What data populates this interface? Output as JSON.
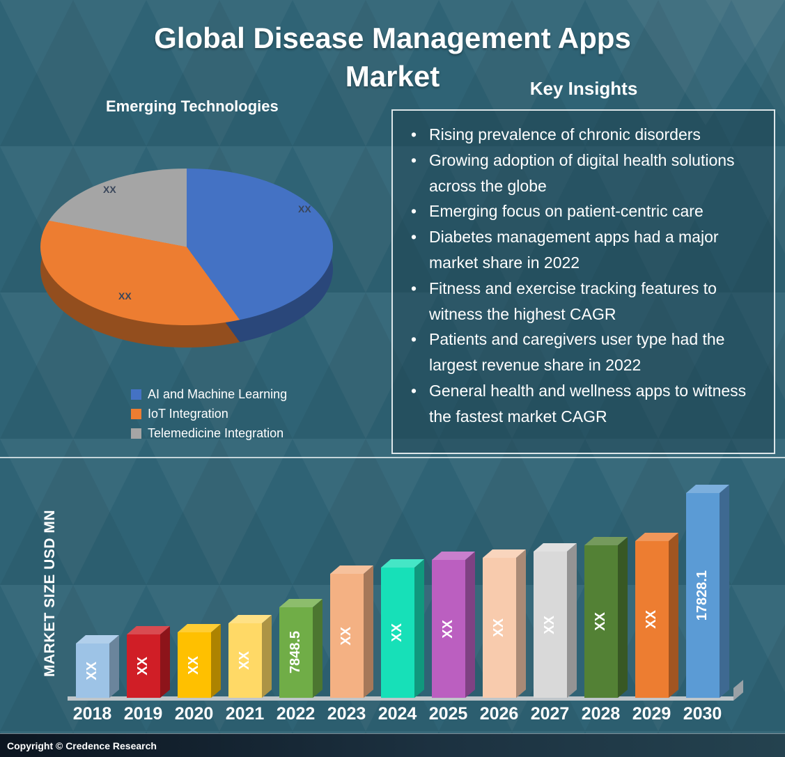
{
  "header": {
    "title_line1": "Global Disease Management Apps",
    "title_line2": "Market"
  },
  "pie_section": {
    "heading": "Emerging Technologies"
  },
  "insights": {
    "heading": "Key Insights",
    "bullets": [
      "Rising prevalence of chronic disorders",
      "Growing adoption of digital health solutions across the globe",
      "Emerging focus on patient-centric care",
      "Diabetes management apps had a major market share in 2022",
      "Fitness and exercise tracking features to witness the highest CAGR",
      "Patients and caregivers user type had the largest revenue share in 2022",
      "General health and wellness apps to witness the fastest market CAGR"
    ]
  },
  "footer": {
    "copyright": "Copyright © Credence Research"
  },
  "colors": {
    "background": "#2f6375",
    "box_border": "#dde6e9"
  },
  "chart_data": [
    {
      "type": "pie",
      "title": "Emerging Technologies",
      "legend_position": "bottom",
      "slices": [
        {
          "label": "AI and Machine Learning",
          "data_label": "XX",
          "percent_est": 40,
          "color": "#4472c4"
        },
        {
          "label": "IoT Integration",
          "data_label": "XX",
          "percent_est": 38,
          "color": "#ed7d31"
        },
        {
          "label": "Telemedicine Integration",
          "data_label": "XX",
          "percent_est": 22,
          "color": "#a5a5a5"
        }
      ]
    },
    {
      "type": "bar",
      "title": "",
      "xlabel": "",
      "ylabel": "MARKET SIZE USD MN",
      "categories": [
        "2018",
        "2019",
        "2020",
        "2021",
        "2022",
        "2023",
        "2024",
        "2025",
        "2026",
        "2027",
        "2028",
        "2029",
        "2030"
      ],
      "bar_labels": [
        "XX",
        "XX",
        "XX",
        "XX",
        "7848.5",
        "XX",
        "XX",
        "XX",
        "XX",
        "XX",
        "XX",
        "XX",
        "17828.1"
      ],
      "values_est": [
        4700,
        5500,
        5700,
        6500,
        7848.5,
        10800,
        11350,
        12000,
        12200,
        12700,
        13250,
        13650,
        17828.1
      ],
      "known_values": {
        "2022": 7848.5,
        "2030": 17828.1
      },
      "colors": [
        "#9dc3e6",
        "#d01e26",
        "#ffc000",
        "#ffd966",
        "#70ad47",
        "#f4b183",
        "#17e0b8",
        "#bb5fc0",
        "#f8cbad",
        "#d9d9d9",
        "#538135",
        "#ed7d31",
        "#5b9bd5"
      ],
      "grid": false
    }
  ]
}
